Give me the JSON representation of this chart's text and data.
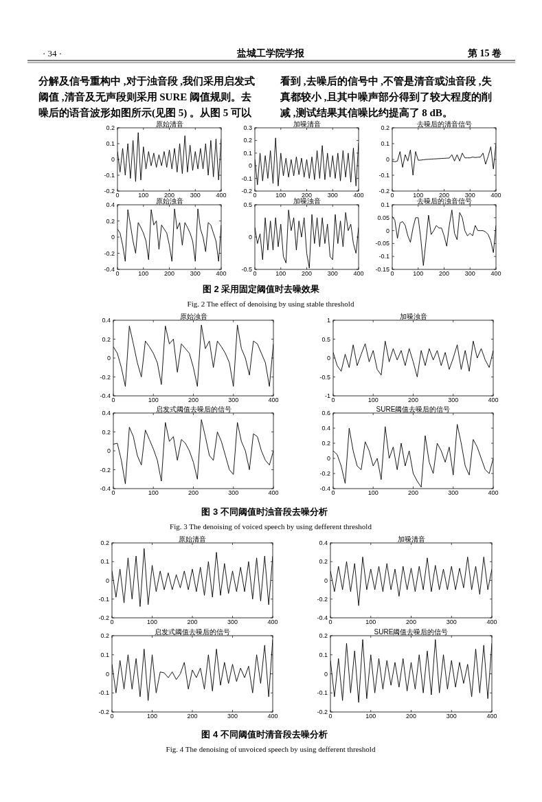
{
  "chart_data": [
    {
      "type": "other",
      "annotations": [
        "· 34 ·",
        "盐城工学院学报",
        "第 15 卷",
        "分解及信号重构中 ,对于浊音段 ,我们采用启发式",
        "阈值 ,清音及无声段则采用 SURE 阈值规则。去",
        "噪后的语音波形如图所示(见图 5) 。从图 5 可以",
        "看到 ,去噪后的信号中 ,不管是清音或浊音段 ,失",
        "真都较小 ,且其中噪声部分得到了较大程度的削",
        "减 ,测试结果其信噪比约提高了 8 dB。"
      ]
    },
    {
      "type": "line",
      "title": "原始清音",
      "color": "#000000",
      "xlim": [
        0,
        400
      ],
      "xticks": [
        0,
        100,
        200,
        300,
        400
      ],
      "ylim": [
        -0.2,
        0.2
      ],
      "yticks": [
        -0.2,
        -0.1,
        0,
        0.1,
        0.2
      ],
      "x": [
        0,
        10,
        20,
        30,
        40,
        50,
        60,
        70,
        80,
        90,
        100,
        110,
        120,
        130,
        140,
        150,
        160,
        170,
        180,
        190,
        200,
        210,
        220,
        230,
        240,
        250,
        260,
        270,
        280,
        290,
        300,
        310,
        320,
        330,
        340,
        350,
        360,
        370,
        380,
        390,
        400
      ],
      "values": [
        0.05,
        -0.08,
        0.07,
        -0.1,
        0.1,
        -0.12,
        0.12,
        -0.14,
        0.17,
        -0.13,
        0.08,
        -0.06,
        0.05,
        -0.04,
        0.04,
        -0.05,
        0.03,
        -0.04,
        0.05,
        -0.05,
        0.06,
        -0.06,
        0.07,
        -0.08,
        0.1,
        -0.09,
        0.15,
        -0.08,
        0.09,
        -0.07,
        0.05,
        -0.06,
        0.07,
        -0.06,
        0.1,
        -0.1,
        0.12,
        -0.11,
        0.13,
        -0.13,
        0.13
      ]
    },
    {
      "type": "line",
      "title": "加噪清音",
      "color": "#000000",
      "xlim": [
        0,
        400
      ],
      "xticks": [
        0,
        100,
        200,
        300,
        400
      ],
      "ylim": [
        -0.2,
        0.3
      ],
      "yticks": [
        -0.2,
        -0.1,
        0,
        0.1,
        0.2,
        0.3
      ],
      "x": [
        0,
        10,
        20,
        30,
        40,
        50,
        60,
        70,
        80,
        90,
        100,
        110,
        120,
        130,
        140,
        150,
        160,
        170,
        180,
        190,
        200,
        210,
        220,
        230,
        240,
        250,
        260,
        270,
        280,
        290,
        300,
        310,
        320,
        330,
        340,
        350,
        360,
        370,
        380,
        390,
        400
      ],
      "values": [
        0.05,
        -0.15,
        0.1,
        -0.12,
        0.08,
        -0.1,
        0.12,
        -0.14,
        0.22,
        -0.16,
        0.1,
        -0.08,
        0.06,
        -0.09,
        0.05,
        -0.08,
        0.07,
        -0.07,
        0.06,
        -0.09,
        0.05,
        -0.1,
        0.07,
        -0.11,
        0.12,
        -0.1,
        0.16,
        -0.11,
        0.1,
        -0.09,
        0.08,
        -0.1,
        0.1,
        -0.12,
        0.12,
        -0.09,
        0.1,
        -0.13,
        0.14,
        -0.16,
        0.18
      ]
    },
    {
      "type": "line",
      "title": "去噪后的清音信号",
      "color": "#000000",
      "xlim": [
        0,
        400
      ],
      "xticks": [
        0,
        100,
        200,
        300,
        400
      ],
      "ylim": [
        -0.2,
        0.2
      ],
      "yticks": [
        -0.2,
        -0.1,
        0,
        0.1,
        0.2
      ],
      "x": [
        0,
        10,
        20,
        30,
        40,
        50,
        60,
        70,
        80,
        90,
        100,
        110,
        120,
        130,
        140,
        150,
        160,
        170,
        180,
        190,
        200,
        210,
        220,
        230,
        240,
        250,
        260,
        270,
        280,
        290,
        300,
        310,
        320,
        330,
        340,
        350,
        360,
        370,
        380,
        390,
        400
      ],
      "values": [
        -0.01,
        -0.015,
        -0.01,
        0.05,
        -0.05,
        0.03,
        -0.01,
        0.06,
        -0.1,
        0.05,
        -0.005,
        -0.004,
        -0.002,
        0,
        0.001,
        0.002,
        0.003,
        0.004,
        0.005,
        0.006,
        0.007,
        0.008,
        0.009,
        0.03,
        -0.01,
        0.03,
        -0.01,
        0.04,
        0.01,
        0.01,
        0.01,
        0.015,
        0.012,
        0.014,
        0.015,
        0.04,
        -0.03,
        0.02,
        0.08,
        -0.06,
        0.1
      ]
    },
    {
      "type": "line",
      "title": "原始浊音",
      "color": "#000000",
      "xlim": [
        0,
        400
      ],
      "xticks": [
        0,
        100,
        200,
        300,
        400
      ],
      "ylim": [
        -0.4,
        0.4
      ],
      "yticks": [
        -0.4,
        -0.2,
        0,
        0.2,
        0.4
      ],
      "x": [
        0,
        10,
        20,
        30,
        40,
        50,
        60,
        70,
        80,
        90,
        100,
        110,
        120,
        130,
        140,
        150,
        160,
        170,
        180,
        190,
        200,
        210,
        220,
        230,
        240,
        250,
        260,
        270,
        280,
        290,
        300,
        310,
        320,
        330,
        340,
        350,
        360,
        370,
        380,
        390,
        400
      ],
      "values": [
        0.1,
        0.05,
        -0.1,
        -0.3,
        0.34,
        0.15,
        -0.05,
        -0.2,
        0.18,
        0.12,
        0.05,
        -0.05,
        -0.28,
        0.34,
        0.15,
        0.2,
        -0.15,
        0.15,
        0.1,
        0.05,
        -0.1,
        -0.3,
        0.35,
        0.1,
        0.18,
        -0.1,
        0.18,
        0.12,
        0.05,
        -0.05,
        -0.3,
        0.35,
        0.1,
        0,
        -0.18,
        0.18,
        0.15,
        0.05,
        -0.05,
        -0.3,
        0.15
      ]
    },
    {
      "type": "line",
      "title": "加噪浊音",
      "color": "#000000",
      "xlim": [
        0,
        400
      ],
      "xticks": [
        0,
        100,
        200,
        300,
        400
      ],
      "ylim": [
        -0.5,
        0.5
      ],
      "yticks": [
        -0.5,
        0,
        0.5
      ],
      "x": [
        0,
        10,
        20,
        30,
        40,
        50,
        60,
        70,
        80,
        90,
        100,
        110,
        120,
        130,
        140,
        150,
        160,
        170,
        180,
        190,
        200,
        210,
        220,
        230,
        240,
        250,
        260,
        270,
        280,
        290,
        300,
        310,
        320,
        330,
        340,
        350,
        360,
        370,
        380,
        390,
        400
      ],
      "values": [
        0.15,
        -0.1,
        0.05,
        -0.35,
        0.3,
        -0.2,
        0.25,
        -0.2,
        0.3,
        -0.15,
        0.2,
        -0.3,
        -0.4,
        0.42,
        0.1,
        0.3,
        -0.2,
        0.25,
        0,
        0.3,
        -0.25,
        -0.48,
        0.35,
        -0.1,
        0.3,
        -0.15,
        0.3,
        -0.1,
        0.2,
        -0.3,
        -0.35,
        0.35,
        -0.1,
        0.25,
        -0.15,
        0.38,
        0.1,
        0.2,
        -0.1,
        -0.25,
        0.15
      ]
    },
    {
      "type": "line",
      "title": "去噪后的浊音信号",
      "color": "#000000",
      "xlim": [
        0,
        400
      ],
      "xticks": [
        0,
        100,
        200,
        300,
        400
      ],
      "ylim": [
        -0.15,
        0.1
      ],
      "yticks": [
        -0.15,
        -0.1,
        -0.05,
        0,
        0.05,
        0.1
      ],
      "x": [
        0,
        10,
        20,
        30,
        40,
        50,
        60,
        70,
        80,
        90,
        100,
        110,
        120,
        130,
        140,
        150,
        160,
        170,
        180,
        190,
        200,
        210,
        220,
        230,
        240,
        250,
        260,
        270,
        280,
        290,
        300,
        310,
        320,
        330,
        340,
        350,
        360,
        370,
        380,
        390,
        400
      ],
      "values": [
        0.055,
        0.04,
        -0.03,
        0.03,
        0.035,
        0.02,
        -0.02,
        -0.045,
        0.01,
        0.05,
        0.05,
        -0.03,
        -0.135,
        -0.04,
        0.06,
        -0.015,
        0,
        0.02,
        0.01,
        0.01,
        -0.02,
        -0.06,
        0.02,
        0.08,
        -0.01,
        -0.035,
        0.07,
        0.05,
        0,
        -0.02,
        -0.01,
        -0.02,
        0.02,
        0,
        0,
        0,
        -0.005,
        -0.015,
        -0.04,
        -0.085,
        0.02
      ]
    },
    {
      "type": "other",
      "annotations": [
        "图 2    采用固定阈值时去噪效果",
        "Fig. 2    The effect of denoising by using stable threshold"
      ]
    },
    {
      "type": "line",
      "title": "原始浊音",
      "color": "#000000",
      "xlim": [
        0,
        400
      ],
      "xticks": [
        0,
        100,
        200,
        300,
        400
      ],
      "ylim": [
        -0.4,
        0.4
      ],
      "yticks": [
        -0.4,
        -0.2,
        0,
        0.2,
        0.4
      ],
      "x": [
        0,
        10,
        20,
        30,
        40,
        50,
        60,
        70,
        80,
        90,
        100,
        110,
        120,
        130,
        140,
        150,
        160,
        170,
        180,
        190,
        200,
        210,
        220,
        230,
        240,
        250,
        260,
        270,
        280,
        290,
        300,
        310,
        320,
        330,
        340,
        350,
        360,
        370,
        380,
        390,
        400
      ],
      "values": [
        0.12,
        0.05,
        -0.1,
        -0.3,
        0.34,
        0.15,
        -0.05,
        -0.2,
        0.18,
        0.12,
        0.05,
        -0.05,
        -0.28,
        0.34,
        0.15,
        0.2,
        -0.15,
        0.15,
        0.1,
        0.05,
        -0.1,
        -0.3,
        0.35,
        0.1,
        0.18,
        -0.1,
        0.18,
        0.12,
        0.05,
        -0.05,
        -0.3,
        0.35,
        0.1,
        0,
        -0.18,
        0.18,
        0.15,
        0.05,
        -0.05,
        -0.3,
        0.15
      ]
    },
    {
      "type": "line",
      "title": "加噪浊音",
      "color": "#000000",
      "xlim": [
        0,
        400
      ],
      "xticks": [
        0,
        100,
        200,
        300,
        400
      ],
      "ylim": [
        -1,
        1
      ],
      "yticks": [
        -1,
        -0.5,
        0,
        0.5,
        1
      ],
      "x": [
        0,
        10,
        20,
        30,
        40,
        50,
        60,
        70,
        80,
        90,
        100,
        110,
        120,
        130,
        140,
        150,
        160,
        170,
        180,
        190,
        200,
        210,
        220,
        230,
        240,
        250,
        260,
        270,
        280,
        290,
        300,
        310,
        320,
        330,
        340,
        350,
        360,
        370,
        380,
        390,
        400
      ],
      "values": [
        0.15,
        -0.2,
        -0.35,
        0.1,
        -0.25,
        0.35,
        -0.2,
        0.1,
        0.38,
        -0.1,
        0.2,
        -0.3,
        -0.45,
        0.45,
        -0.1,
        0.25,
        -0.05,
        0.2,
        -0.2,
        0.25,
        -0.1,
        -0.5,
        0.2,
        -0.2,
        0.25,
        -0.05,
        0.2,
        -0.2,
        0.15,
        -0.3,
        0,
        0.35,
        -0.3,
        0.2,
        -0.35,
        0.45,
        0,
        0.25,
        -0.05,
        -0.25,
        0.2
      ]
    },
    {
      "type": "line",
      "title": "启发式阈值去噪后的信号",
      "color": "#000000",
      "xlim": [
        0,
        400
      ],
      "xticks": [
        0,
        100,
        200,
        300,
        400
      ],
      "ylim": [
        -0.4,
        0.4
      ],
      "yticks": [
        -0.4,
        -0.2,
        0,
        0.2,
        0.4
      ],
      "x": [
        0,
        10,
        20,
        30,
        40,
        50,
        60,
        70,
        80,
        90,
        100,
        110,
        120,
        130,
        140,
        150,
        160,
        170,
        180,
        190,
        200,
        210,
        220,
        230,
        240,
        250,
        260,
        270,
        280,
        290,
        300,
        310,
        320,
        330,
        340,
        350,
        360,
        370,
        380,
        390,
        400
      ],
      "values": [
        0.07,
        0.08,
        -0.1,
        -0.35,
        0.25,
        0.15,
        -0.05,
        -0.15,
        0.22,
        0.12,
        0.02,
        -0.1,
        -0.32,
        0.3,
        0.1,
        0.15,
        -0.1,
        0.12,
        0.08,
        0,
        -0.12,
        -0.3,
        0.33,
        0.15,
        -0.05,
        -0.1,
        0.2,
        0.1,
        -0.05,
        -0.2,
        -0.25,
        0.3,
        0.1,
        0,
        -0.2,
        0.18,
        0.15,
        0,
        -0.1,
        -0.15,
        0
      ]
    },
    {
      "type": "line",
      "title": "SURE阈值去噪后的信号",
      "color": "#000000",
      "xlim": [
        0,
        400
      ],
      "xticks": [
        0,
        100,
        200,
        300,
        400
      ],
      "ylim": [
        -0.4,
        0.6
      ],
      "yticks": [
        -0.4,
        -0.2,
        0,
        0.2,
        0.4,
        0.6
      ],
      "x": [
        0,
        10,
        20,
        30,
        40,
        50,
        60,
        70,
        80,
        90,
        100,
        110,
        120,
        130,
        140,
        150,
        160,
        170,
        180,
        190,
        200,
        210,
        220,
        230,
        240,
        250,
        260,
        270,
        280,
        290,
        300,
        310,
        320,
        330,
        340,
        350,
        360,
        370,
        380,
        390,
        400
      ],
      "values": [
        0.1,
        0.05,
        -0.1,
        -0.33,
        0.4,
        0.1,
        -0.1,
        -0.15,
        0.22,
        0.1,
        -0.1,
        0,
        -0.28,
        0.42,
        0,
        0.15,
        -0.15,
        0.2,
        -0.1,
        0.1,
        -0.2,
        -0.3,
        -0.38,
        0.3,
        -0.05,
        -0.2,
        0.2,
        0.1,
        -0.05,
        0.15,
        -0.22,
        0.45,
        0.2,
        -0.1,
        -0.22,
        0.25,
        0.15,
        0,
        -0.15,
        -0.2,
        0
      ]
    },
    {
      "type": "other",
      "annotations": [
        "图 3    不同阈值时浊音段去噪分析",
        "Fig. 3    The denoising of voiced speech by using defferent threshold"
      ]
    },
    {
      "type": "line",
      "title": "原始清音",
      "color": "#000000",
      "xlim": [
        0,
        400
      ],
      "xticks": [
        0,
        100,
        200,
        300,
        400
      ],
      "ylim": [
        -0.2,
        0.2
      ],
      "yticks": [
        -0.2,
        -0.1,
        0,
        0.1,
        0.2
      ],
      "x": [
        0,
        10,
        20,
        30,
        40,
        50,
        60,
        70,
        80,
        90,
        100,
        110,
        120,
        130,
        140,
        150,
        160,
        170,
        180,
        190,
        200,
        210,
        220,
        230,
        240,
        250,
        260,
        270,
        280,
        290,
        300,
        310,
        320,
        330,
        340,
        350,
        360,
        370,
        380,
        390,
        400
      ],
      "values": [
        0.05,
        -0.09,
        0.06,
        -0.12,
        0.12,
        -0.1,
        0.13,
        -0.14,
        0.17,
        -0.13,
        0.08,
        -0.06,
        0.05,
        -0.05,
        0.04,
        -0.05,
        0.03,
        -0.04,
        0.05,
        -0.05,
        0.06,
        -0.06,
        0.07,
        -0.08,
        0.1,
        -0.09,
        0.15,
        -0.08,
        0.09,
        -0.07,
        0.05,
        -0.06,
        0.07,
        -0.06,
        0.1,
        -0.1,
        0.12,
        -0.11,
        0.13,
        -0.13,
        0.13
      ]
    },
    {
      "type": "line",
      "title": "加噪清音",
      "color": "#000000",
      "xlim": [
        0,
        400
      ],
      "xticks": [
        0,
        100,
        200,
        300,
        400
      ],
      "ylim": [
        -0.4,
        0.4
      ],
      "yticks": [
        -0.4,
        -0.2,
        0,
        0.2,
        0.4
      ],
      "x": [
        0,
        10,
        20,
        30,
        40,
        50,
        60,
        70,
        80,
        90,
        100,
        110,
        120,
        130,
        140,
        150,
        160,
        170,
        180,
        190,
        200,
        210,
        220,
        230,
        240,
        250,
        260,
        270,
        280,
        290,
        300,
        310,
        320,
        330,
        340,
        350,
        360,
        370,
        380,
        390,
        400
      ],
      "values": [
        0.1,
        -0.12,
        0.15,
        -0.1,
        0.2,
        -0.12,
        0.18,
        -0.27,
        0.25,
        -0.1,
        0.12,
        -0.1,
        0.15,
        -0.12,
        0.18,
        -0.1,
        0.12,
        -0.17,
        0.15,
        -0.1,
        0.13,
        -0.12,
        0.15,
        -0.1,
        0.24,
        -0.12,
        0.16,
        -0.1,
        0.12,
        -0.1,
        0.15,
        -0.1,
        0.13,
        -0.08,
        0.25,
        -0.1,
        0.15,
        -0.15,
        0.25,
        -0.1,
        0.12
      ]
    },
    {
      "type": "line",
      "title": "启发式阈值去噪后的信号",
      "color": "#000000",
      "xlim": [
        0,
        400
      ],
      "xticks": [
        0,
        100,
        200,
        300,
        400
      ],
      "ylim": [
        -0.2,
        0.2
      ],
      "yticks": [
        -0.2,
        -0.1,
        0,
        0.1,
        0.2
      ],
      "x": [
        0,
        10,
        20,
        30,
        40,
        50,
        60,
        70,
        80,
        90,
        100,
        110,
        120,
        130,
        140,
        150,
        160,
        170,
        180,
        190,
        200,
        210,
        220,
        230,
        240,
        250,
        260,
        270,
        280,
        290,
        300,
        310,
        320,
        330,
        340,
        350,
        360,
        370,
        380,
        390,
        400
      ],
      "values": [
        0.05,
        -0.1,
        0.07,
        -0.08,
        0.1,
        -0.08,
        0.08,
        -0.12,
        0.13,
        -0.14,
        0.1,
        -0.1,
        0.01,
        0.005,
        -0.02,
        0.01,
        -0.03,
        0,
        0.06,
        -0.08,
        0.02,
        -0.02,
        0.03,
        -0.08,
        0.1,
        -0.09,
        0.13,
        -0.06,
        0.06,
        -0.05,
        0.05,
        -0.04,
        0.03,
        -0.02,
        0.04,
        -0.1,
        0.1,
        -0.05,
        0.15,
        -0.12,
        0.18
      ]
    },
    {
      "type": "line",
      "title": "SURE阈值去噪后的信号",
      "color": "#000000",
      "xlim": [
        0,
        400
      ],
      "xticks": [
        0,
        100,
        200,
        300,
        400
      ],
      "ylim": [
        -0.2,
        0.2
      ],
      "yticks": [
        -0.2,
        -0.1,
        0,
        0.1,
        0.2
      ],
      "x": [
        0,
        10,
        20,
        30,
        40,
        50,
        60,
        70,
        80,
        90,
        100,
        110,
        120,
        130,
        140,
        150,
        160,
        170,
        180,
        190,
        200,
        210,
        220,
        230,
        240,
        250,
        260,
        270,
        280,
        290,
        300,
        310,
        320,
        330,
        340,
        350,
        360,
        370,
        380,
        390,
        400
      ],
      "values": [
        0.07,
        -0.12,
        0.08,
        -0.14,
        0.16,
        -0.1,
        0.12,
        -0.15,
        0.18,
        -0.13,
        0.1,
        -0.1,
        0.08,
        -0.08,
        0.07,
        -0.06,
        0.06,
        -0.07,
        0.08,
        -0.09,
        0.06,
        -0.08,
        0.1,
        -0.1,
        0.12,
        -0.11,
        0.18,
        -0.1,
        0.1,
        -0.08,
        0.07,
        -0.07,
        0.06,
        -0.05,
        0.05,
        -0.12,
        0.13,
        -0.1,
        0.15,
        -0.13,
        0.16
      ]
    },
    {
      "type": "other",
      "annotations": [
        "图 4    不同阈值时清音段去噪分析",
        "Fig. 4    The denoising of unvoiced speech by using defferent threshold"
      ]
    }
  ]
}
